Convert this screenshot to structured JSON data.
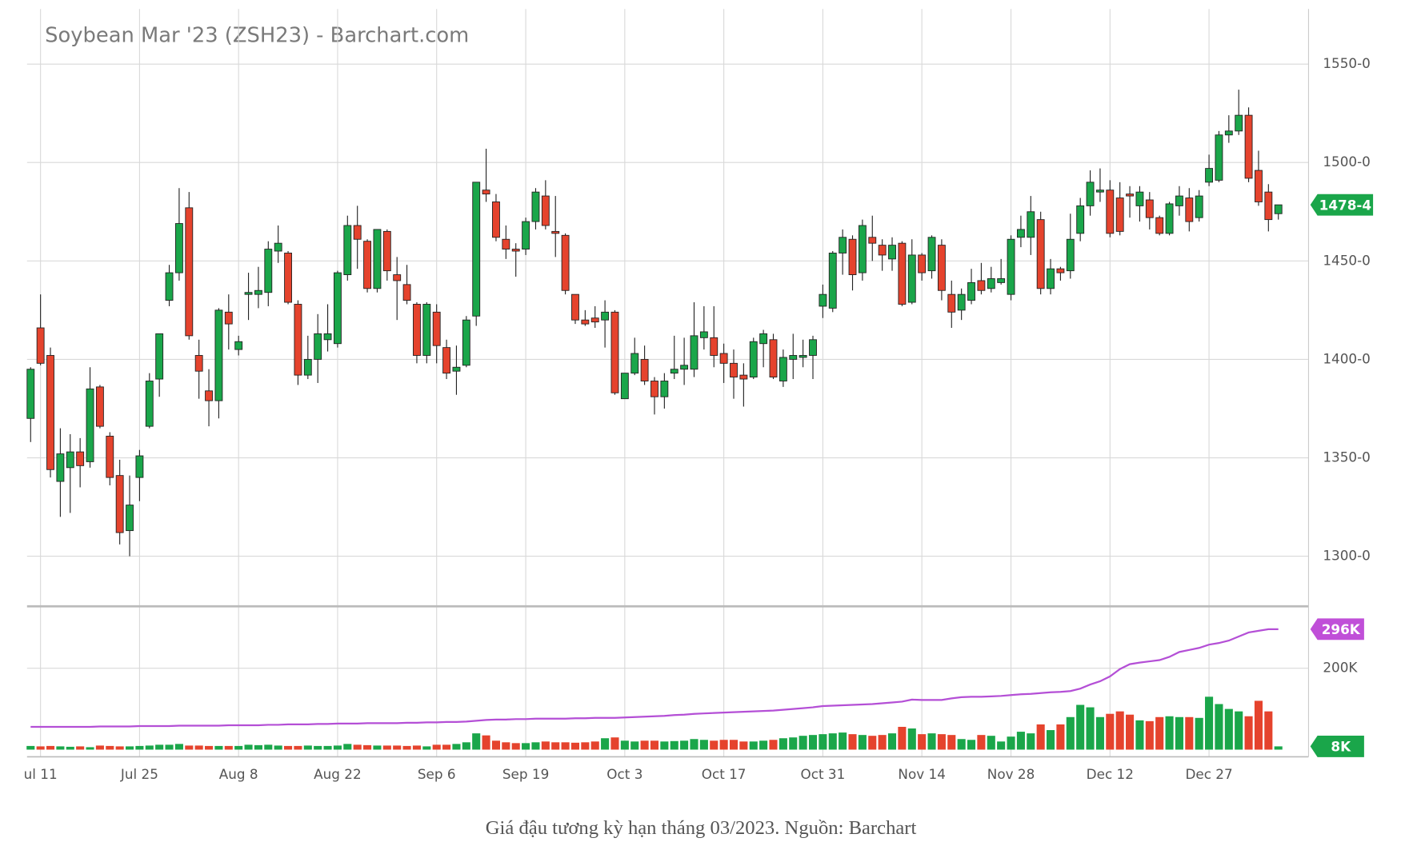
{
  "chart_data": [
    {
      "type": "candlestick",
      "title": "Soybean Mar '23 (ZSH23) - Barchart.com",
      "categories": [
        null,
        "ul 11",
        null,
        null,
        null,
        null,
        null,
        null,
        null,
        null,
        null,
        "Jul 25",
        null,
        null,
        null,
        null,
        null,
        null,
        null,
        null,
        null,
        "Aug 8",
        null,
        null,
        null,
        null,
        null,
        null,
        null,
        null,
        null,
        "Aug 22",
        null,
        null,
        null,
        null,
        null,
        null,
        null,
        null,
        null,
        "Sep 6",
        null,
        null,
        null,
        null,
        null,
        null,
        null,
        null,
        "Sep 19",
        null,
        null,
        null,
        null,
        null,
        null,
        null,
        null,
        null,
        "Oct 3",
        null,
        null,
        null,
        null,
        null,
        null,
        null,
        null,
        null,
        "Oct 17",
        null,
        null,
        null,
        null,
        null,
        null,
        null,
        null,
        null,
        "Oct 31",
        null,
        null,
        null,
        null,
        null,
        null,
        null,
        null,
        null,
        "Nov 14",
        null,
        null,
        null,
        null,
        null,
        null,
        null,
        null,
        "Nov 28",
        null,
        null,
        null,
        null,
        null,
        null,
        null,
        null,
        null,
        "Dec 12",
        null,
        null,
        null,
        null,
        null,
        null,
        null,
        null,
        null,
        "Dec 27",
        null,
        null,
        null,
        null,
        null,
        null,
        null
      ],
      "open": [
        1370,
        1416,
        1402,
        1338,
        1345,
        1353,
        1348,
        1386,
        1361,
        1341,
        1313,
        1340,
        1366,
        1390,
        1430,
        1444,
        1477,
        1402,
        1384,
        1379,
        1424,
        1405,
        1433,
        1433,
        1434,
        1455,
        1454,
        1428,
        1392,
        1400,
        1410,
        1408,
        1443,
        1468,
        1460,
        1436,
        1465,
        1443,
        1438,
        1428,
        1402,
        1424,
        1406,
        1394,
        1397,
        1422,
        1486,
        1480,
        1461,
        1456,
        1456,
        1470,
        1483,
        1465,
        1463,
        1433,
        1420,
        1421,
        1420,
        1424,
        1380,
        1393,
        1400,
        1389,
        1381,
        1393,
        1395,
        1395,
        1411,
        1411,
        1403,
        1398,
        1392,
        1391,
        1408,
        1410,
        1389,
        1400,
        1401,
        1402,
        1427,
        1426,
        1454,
        1461,
        1444,
        1462,
        1458,
        1451,
        1459,
        1429,
        1453,
        1445,
        1458,
        1433,
        1425,
        1430,
        1440,
        1436,
        1439,
        1433,
        1462,
        1462,
        1471,
        1436,
        1446,
        1445,
        1464,
        1478,
        1485,
        1486,
        1482,
        1484,
        1478,
        1481,
        1472,
        1464,
        1478,
        1482,
        1472,
        1490,
        1491,
        1514,
        1516,
        1524,
        1496,
        1485,
        1474
      ],
      "high": [
        1396,
        1433,
        1406,
        1365,
        1362,
        1360,
        1396,
        1387,
        1363,
        1349,
        1341,
        1354,
        1393,
        1413,
        1448,
        1487,
        1485,
        1410,
        1395,
        1426,
        1433,
        1412,
        1444,
        1447,
        1460,
        1468,
        1455,
        1430,
        1412,
        1423,
        1428,
        1445,
        1473,
        1478,
        1461,
        1466,
        1466,
        1452,
        1448,
        1429,
        1429,
        1428,
        1410,
        1407,
        1422,
        1490,
        1507,
        1484,
        1468,
        1459,
        1472,
        1487,
        1491,
        1483,
        1464,
        1433,
        1425,
        1427,
        1430,
        1425,
        1393,
        1411,
        1407,
        1391,
        1393,
        1412,
        1411,
        1429,
        1427,
        1427,
        1408,
        1405,
        1398,
        1411,
        1415,
        1413,
        1405,
        1413,
        1410,
        1412,
        1438,
        1455,
        1466,
        1463,
        1471,
        1473,
        1461,
        1462,
        1460,
        1461,
        1454,
        1463,
        1461,
        1440,
        1436,
        1446,
        1449,
        1447,
        1451,
        1463,
        1473,
        1483,
        1475,
        1451,
        1447,
        1474,
        1482,
        1496,
        1497,
        1491,
        1490,
        1488,
        1488,
        1485,
        1473,
        1480,
        1488,
        1487,
        1486,
        1504,
        1516,
        1524,
        1537,
        1528,
        1506,
        1489,
        1478.5
      ],
      "low": [
        1358,
        1397,
        1340,
        1320,
        1322,
        1335,
        1345,
        1365,
        1336,
        1306,
        1300,
        1328,
        1365,
        1381,
        1427,
        1440,
        1410,
        1380,
        1366,
        1370,
        1405,
        1402,
        1420,
        1426,
        1427,
        1449,
        1428,
        1387,
        1390,
        1388,
        1404,
        1406,
        1440,
        1446,
        1434,
        1434,
        1440,
        1420,
        1428,
        1398,
        1398,
        1398,
        1390,
        1382,
        1396,
        1417,
        1480,
        1460,
        1451,
        1442,
        1453,
        1466,
        1466,
        1452,
        1433,
        1418,
        1417,
        1416,
        1406,
        1382,
        1380,
        1392,
        1387,
        1372,
        1375,
        1390,
        1387,
        1391,
        1405,
        1396,
        1388,
        1380,
        1376,
        1390,
        1396,
        1390,
        1386,
        1390,
        1396,
        1390,
        1421,
        1424,
        1443,
        1435,
        1440,
        1450,
        1445,
        1445,
        1427,
        1428,
        1440,
        1441,
        1430,
        1416,
        1420,
        1428,
        1433,
        1434,
        1438,
        1430,
        1457,
        1453,
        1433,
        1433,
        1440,
        1441,
        1460,
        1473,
        1480,
        1462,
        1463,
        1472,
        1470,
        1466,
        1463,
        1463,
        1473,
        1465,
        1470,
        1488,
        1490,
        1510,
        1514,
        1490,
        1478,
        1465,
        1471
      ],
      "close": [
        1395,
        1398,
        1344,
        1352,
        1353,
        1346,
        1385,
        1366,
        1340,
        1312,
        1326,
        1351,
        1389,
        1413,
        1444,
        1469,
        1412,
        1394,
        1379,
        1425,
        1418,
        1409,
        1434,
        1435,
        1456,
        1459,
        1429,
        1392,
        1400,
        1413,
        1413,
        1444,
        1468,
        1461,
        1436,
        1466,
        1445,
        1440,
        1430,
        1402,
        1428,
        1407,
        1393,
        1396,
        1420,
        1490,
        1484,
        1462,
        1456,
        1455,
        1470,
        1485,
        1468,
        1464,
        1435,
        1420,
        1418,
        1419,
        1424,
        1383,
        1393,
        1403,
        1389,
        1381,
        1389,
        1395,
        1397,
        1412,
        1414,
        1402,
        1398,
        1391,
        1390,
        1409,
        1413,
        1391,
        1401,
        1402,
        1402,
        1410,
        1433,
        1454,
        1462,
        1443,
        1468,
        1459,
        1453,
        1458,
        1428,
        1453,
        1444,
        1462,
        1435,
        1424,
        1433,
        1439,
        1435,
        1441,
        1441,
        1461,
        1466,
        1475,
        1436,
        1446,
        1444,
        1461,
        1478,
        1490,
        1486,
        1464,
        1465,
        1483,
        1485,
        1472,
        1464,
        1479,
        1483,
        1470,
        1483,
        1497,
        1514,
        1516,
        1524,
        1492,
        1480,
        1471,
        1478.5
      ],
      "up_color": "#1aa64a",
      "down_color": "#e5432d",
      "ylim": [
        1275,
        1578
      ],
      "yticks": [
        {
          "value": 1300,
          "label": "1300-0"
        },
        {
          "value": 1350,
          "label": "1350-0"
        },
        {
          "value": 1400,
          "label": "1400-0"
        },
        {
          "value": 1450,
          "label": "1450-0"
        },
        {
          "value": 1500,
          "label": "1500-0"
        },
        {
          "value": 1550,
          "label": "1550-0"
        }
      ],
      "last_price": {
        "value": 1478.5,
        "label": "1478-4"
      },
      "grid": true
    },
    {
      "type": "volume",
      "volume": [
        9,
        8,
        9,
        8,
        7,
        8,
        6,
        10,
        9,
        8,
        8,
        9,
        10,
        12,
        12,
        14,
        10,
        10,
        9,
        9,
        9,
        9,
        12,
        11,
        12,
        10,
        9,
        9,
        10,
        9,
        9,
        10,
        14,
        12,
        11,
        10,
        10,
        10,
        9,
        10,
        8,
        12,
        12,
        14,
        18,
        40,
        35,
        22,
        18,
        16,
        16,
        18,
        20,
        18,
        18,
        17,
        18,
        20,
        28,
        30,
        22,
        20,
        22,
        22,
        20,
        21,
        22,
        26,
        24,
        22,
        24,
        24,
        20,
        20,
        22,
        24,
        28,
        30,
        34,
        36,
        38,
        40,
        42,
        38,
        36,
        34,
        36,
        40,
        56,
        52,
        38,
        40,
        38,
        36,
        26,
        24,
        36,
        34,
        20,
        32,
        44,
        40,
        62,
        48,
        62,
        80,
        110,
        104,
        80,
        88,
        94,
        86,
        72,
        70,
        80,
        82,
        80,
        80,
        78,
        130,
        112,
        100,
        94,
        82,
        120,
        94,
        8
      ],
      "open_interest": [
        56,
        56,
        56,
        56,
        56,
        56,
        56,
        57,
        57,
        57,
        57,
        58,
        58,
        58,
        58,
        59,
        59,
        59,
        59,
        59,
        60,
        60,
        60,
        60,
        61,
        61,
        62,
        62,
        62,
        63,
        63,
        64,
        64,
        64,
        65,
        65,
        65,
        65,
        66,
        66,
        67,
        67,
        68,
        68,
        69,
        71,
        73,
        74,
        74,
        75,
        75,
        76,
        76,
        76,
        76,
        77,
        77,
        78,
        78,
        78,
        79,
        80,
        81,
        82,
        83,
        85,
        86,
        88,
        89,
        90,
        91,
        92,
        93,
        94,
        95,
        96,
        98,
        100,
        102,
        104,
        107,
        108,
        109,
        110,
        111,
        112,
        114,
        116,
        118,
        123,
        122,
        122,
        122,
        126,
        129,
        130,
        130,
        131,
        132,
        134,
        136,
        137,
        139,
        141,
        142,
        144,
        150,
        160,
        168,
        180,
        198,
        210,
        214,
        217,
        220,
        228,
        240,
        245,
        250,
        258,
        262,
        268,
        278,
        288,
        292,
        296,
        296
      ],
      "line_color": "#b44fd6",
      "ylim": [
        0,
        350
      ],
      "yticks": [
        {
          "value": 200,
          "label": "200K"
        }
      ],
      "annotations": [
        {
          "value": 296,
          "label": "296K",
          "color": "#c04fd8"
        },
        {
          "value": 8,
          "label": "8K",
          "color": "#1aa64a"
        }
      ]
    }
  ],
  "caption": "Giá đậu tương kỳ hạn tháng 03/2023. Nguồn: Barchart"
}
